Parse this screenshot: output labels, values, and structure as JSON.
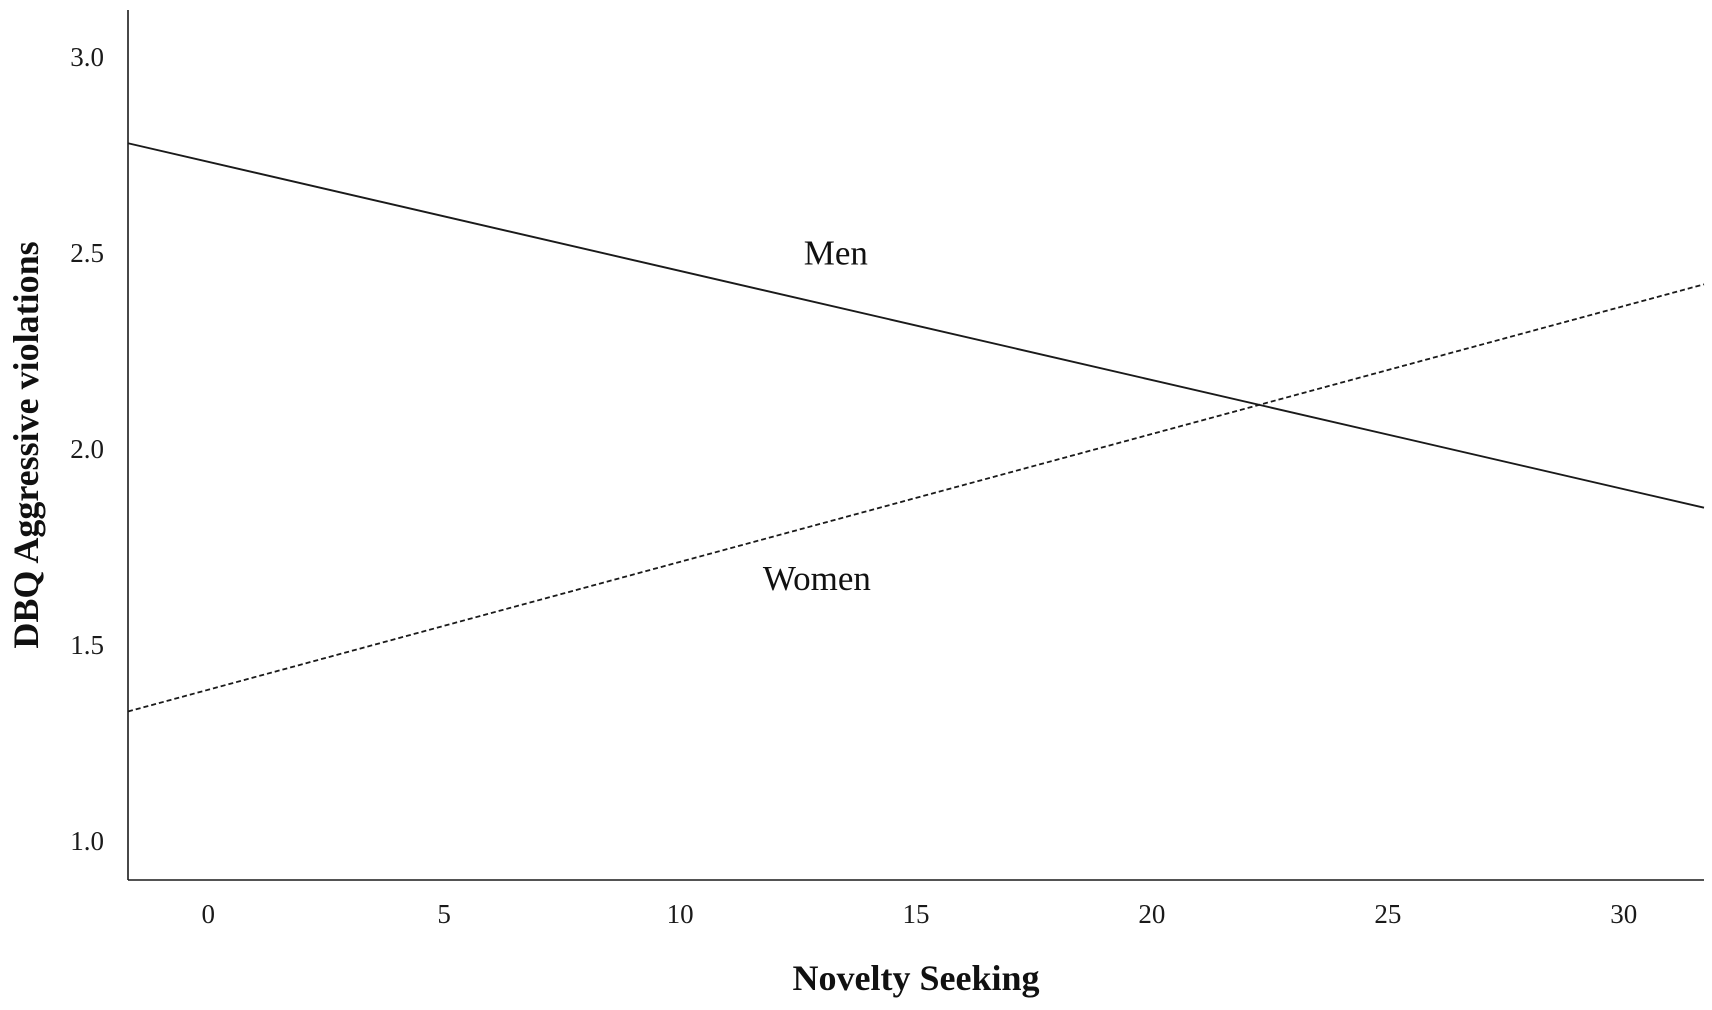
{
  "chart_data": {
    "type": "line",
    "title": "",
    "xlabel": "Novelty Seeking",
    "ylabel": "DBQ Aggressive violations",
    "xlim": [
      -1.7,
      31.7
    ],
    "ylim": [
      0.9,
      3.12
    ],
    "x_ticks": [
      {
        "value": 0,
        "label": "0"
      },
      {
        "value": 5,
        "label": "5"
      },
      {
        "value": 10,
        "label": "10"
      },
      {
        "value": 15,
        "label": "15"
      },
      {
        "value": 20,
        "label": "20"
      },
      {
        "value": 25,
        "label": "25"
      },
      {
        "value": 30,
        "label": "30"
      }
    ],
    "y_ticks": [
      {
        "value": 1.0,
        "label": "1.0"
      },
      {
        "value": 1.5,
        "label": "1.5"
      },
      {
        "value": 2.0,
        "label": "2.0"
      },
      {
        "value": 2.5,
        "label": "2.5"
      },
      {
        "value": 3.0,
        "label": "3.0"
      }
    ],
    "grid": false,
    "legend": "none",
    "series": [
      {
        "name": "Men",
        "style": "solid",
        "color": "#1a1a1a",
        "x": [
          -1.7,
          31.7
        ],
        "y": [
          2.78,
          1.85
        ],
        "label_anchor": {
          "x": 13.3,
          "y": 2.47
        }
      },
      {
        "name": "Women",
        "style": "dashed",
        "color": "#1a1a1a",
        "x": [
          -1.7,
          31.7
        ],
        "y": [
          1.33,
          2.42
        ],
        "label_anchor": {
          "x": 12.9,
          "y": 1.64
        }
      }
    ]
  }
}
